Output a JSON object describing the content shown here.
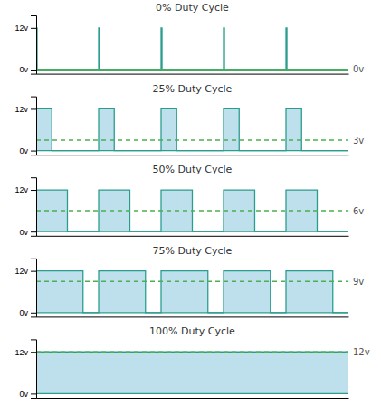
{
  "chart_data": [
    {
      "type": "line",
      "title": "0% Duty Cycle",
      "xlim": [
        0,
        5
      ],
      "ylim": [
        -0.1,
        1.3
      ],
      "yticks": [
        {
          "value": 0,
          "label": "0v"
        },
        {
          "value": 1,
          "label": "12v"
        }
      ],
      "tick_labels": "y",
      "series": [
        {
          "type": "line",
          "color": "#2a9d8f",
          "x": [
            0,
            0,
            0.015,
            0.015,
            1,
            1,
            1.015,
            1.015,
            2,
            2,
            2.015,
            2.015,
            3,
            3,
            3.015,
            3.015,
            4,
            4,
            4.015,
            4.015,
            5
          ],
          "values": [
            0,
            1,
            1,
            0,
            0,
            1,
            1,
            0,
            0,
            1,
            1,
            0,
            0,
            1,
            1,
            0,
            0,
            1,
            1,
            0,
            0
          ]
        },
        {
          "type": "line",
          "color": "#2a9d8f",
          "x": [
            0,
            5
          ],
          "values": [
            0,
            0
          ]
        },
        {
          "type": "line",
          "color": "#4caf50",
          "line_style": "solid",
          "x": [
            0,
            5
          ],
          "values": [
            0.0,
            0.0
          ]
        }
      ],
      "annotations": [
        {
          "text": "0v",
          "y": 0.0
        }
      ]
    },
    {
      "type": "line",
      "title": "25% Duty Cycle",
      "xlim": [
        0,
        5
      ],
      "ylim": [
        -0.1,
        1.3
      ],
      "yticks": [
        {
          "value": 0,
          "label": "0v"
        },
        {
          "value": 1,
          "label": "12v"
        }
      ],
      "tick_labels": "y",
      "series": [
        {
          "type": "area",
          "color": "#a8d4e6",
          "x": [
            0,
            0,
            0.25,
            0.25,
            1,
            1,
            1.25,
            1.25,
            2,
            2,
            2.25,
            2.25,
            3,
            3,
            3.25,
            3.25,
            4,
            4,
            4.25,
            4.25,
            5
          ],
          "values": [
            0,
            1,
            1,
            0,
            0,
            1,
            1,
            0,
            0,
            1,
            1,
            0,
            0,
            1,
            1,
            0,
            0,
            1,
            1,
            0,
            0
          ]
        },
        {
          "type": "line",
          "color": "#2a9d8f",
          "x": [
            0,
            0,
            0.25,
            0.25,
            1,
            1,
            1.25,
            1.25,
            2,
            2,
            2.25,
            2.25,
            3,
            3,
            3.25,
            3.25,
            4,
            4,
            4.25,
            4.25,
            5
          ],
          "values": [
            0,
            1,
            1,
            0,
            0,
            1,
            1,
            0,
            0,
            1,
            1,
            0,
            0,
            1,
            1,
            0,
            0,
            1,
            1,
            0,
            0
          ]
        },
        {
          "type": "line",
          "color": "#2a9d8f",
          "x": [
            0,
            5
          ],
          "values": [
            0,
            0
          ]
        },
        {
          "type": "line",
          "color": "#4caf50",
          "line_style": "dashed",
          "x": [
            0,
            5
          ],
          "values": [
            0.25,
            0.25
          ]
        }
      ],
      "annotations": [
        {
          "text": "3v",
          "y": 0.25
        }
      ]
    },
    {
      "type": "line",
      "title": "50% Duty Cycle",
      "xlim": [
        0,
        5
      ],
      "ylim": [
        -0.1,
        1.3
      ],
      "yticks": [
        {
          "value": 0,
          "label": "0v"
        },
        {
          "value": 1,
          "label": "12v"
        }
      ],
      "tick_labels": "y",
      "series": [
        {
          "type": "area",
          "color": "#a8d4e6",
          "x": [
            0,
            0,
            0.5,
            0.5,
            1,
            1,
            1.5,
            1.5,
            2,
            2,
            2.5,
            2.5,
            3,
            3,
            3.5,
            3.5,
            4,
            4,
            4.5,
            4.5,
            5
          ],
          "values": [
            0,
            1,
            1,
            0,
            0,
            1,
            1,
            0,
            0,
            1,
            1,
            0,
            0,
            1,
            1,
            0,
            0,
            1,
            1,
            0,
            0
          ]
        },
        {
          "type": "line",
          "color": "#2a9d8f",
          "x": [
            0,
            0,
            0.5,
            0.5,
            1,
            1,
            1.5,
            1.5,
            2,
            2,
            2.5,
            2.5,
            3,
            3,
            3.5,
            3.5,
            4,
            4,
            4.5,
            4.5,
            5
          ],
          "values": [
            0,
            1,
            1,
            0,
            0,
            1,
            1,
            0,
            0,
            1,
            1,
            0,
            0,
            1,
            1,
            0,
            0,
            1,
            1,
            0,
            0
          ]
        },
        {
          "type": "line",
          "color": "#2a9d8f",
          "x": [
            0,
            5
          ],
          "values": [
            0,
            0
          ]
        },
        {
          "type": "line",
          "color": "#4caf50",
          "line_style": "dashed",
          "x": [
            0,
            5
          ],
          "values": [
            0.5,
            0.5
          ]
        }
      ],
      "annotations": [
        {
          "text": "6v",
          "y": 0.5
        }
      ]
    },
    {
      "type": "line",
      "title": "75% Duty Cycle",
      "xlim": [
        0,
        5
      ],
      "ylim": [
        -0.1,
        1.3
      ],
      "yticks": [
        {
          "value": 0,
          "label": "0v"
        },
        {
          "value": 1,
          "label": "12v"
        }
      ],
      "tick_labels": "y",
      "series": [
        {
          "type": "area",
          "color": "#a8d4e6",
          "x": [
            0,
            0,
            0.75,
            0.75,
            1,
            1,
            1.75,
            1.75,
            2,
            2,
            2.75,
            2.75,
            3,
            3,
            3.75,
            3.75,
            4,
            4,
            4.75,
            4.75,
            5
          ],
          "values": [
            0,
            1,
            1,
            0,
            0,
            1,
            1,
            0,
            0,
            1,
            1,
            0,
            0,
            1,
            1,
            0,
            0,
            1,
            1,
            0,
            0
          ]
        },
        {
          "type": "line",
          "color": "#2a9d8f",
          "x": [
            0,
            0,
            0.75,
            0.75,
            1,
            1,
            1.75,
            1.75,
            2,
            2,
            2.75,
            2.75,
            3,
            3,
            3.75,
            3.75,
            4,
            4,
            4.75,
            4.75,
            5
          ],
          "values": [
            0,
            1,
            1,
            0,
            0,
            1,
            1,
            0,
            0,
            1,
            1,
            0,
            0,
            1,
            1,
            0,
            0,
            1,
            1,
            0,
            0
          ]
        },
        {
          "type": "line",
          "color": "#2a9d8f",
          "x": [
            0,
            5
          ],
          "values": [
            0,
            0
          ]
        },
        {
          "type": "line",
          "color": "#4caf50",
          "line_style": "dashed",
          "x": [
            0,
            5
          ],
          "values": [
            0.75,
            0.75
          ]
        }
      ],
      "annotations": [
        {
          "text": "9v",
          "y": 0.75
        }
      ]
    },
    {
      "type": "line",
      "title": "100% Duty Cycle",
      "xlim": [
        0,
        5
      ],
      "ylim": [
        -0.1,
        1.3
      ],
      "yticks": [
        {
          "value": 0,
          "label": "0v"
        },
        {
          "value": 1,
          "label": "12v"
        }
      ],
      "tick_labels": "y",
      "series": [
        {
          "type": "area",
          "color": "#a8d4e6",
          "x": [
            0,
            0,
            5,
            5
          ],
          "values": [
            0,
            1,
            1,
            0
          ]
        },
        {
          "type": "line",
          "color": "#2a9d8f",
          "x": [
            0,
            0,
            5,
            5
          ],
          "values": [
            0,
            1,
            1,
            0
          ]
        },
        {
          "type": "line",
          "color": "#2a9d8f",
          "x": [
            0,
            5
          ],
          "values": [
            0,
            0
          ]
        },
        {
          "type": "line",
          "color": "#4caf50",
          "line_style": "dashed",
          "x": [
            0,
            5
          ],
          "values": [
            1,
            1
          ]
        }
      ],
      "annotations": [
        {
          "text": "12v",
          "y": 1.0
        }
      ]
    }
  ]
}
